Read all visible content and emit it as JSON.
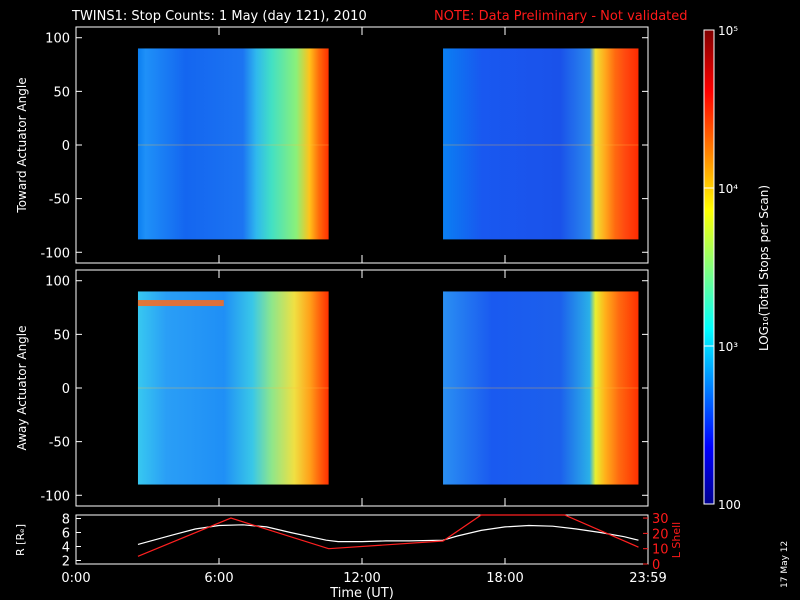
{
  "title": {
    "main": "TWINS1: Stop Counts:  1 May (day 121), 2010",
    "note": "NOTE: Data Preliminary - Not validated"
  },
  "colors": {
    "background": "#000000",
    "axis": "#ffffff",
    "orbit_r": "#ffffff",
    "orbit_l": "#ff2020",
    "note": "#ff1a1a"
  },
  "chart_data": [
    {
      "type": "heatmap",
      "ylabel": "Toward Actuator Angle",
      "ylim": [
        -110,
        110
      ],
      "yticks": [
        "-100",
        "-50",
        "0",
        "50",
        "100"
      ],
      "yrange_data": [
        -88,
        90
      ],
      "data_intervals_hours": [
        [
          2.6,
          10.6
        ],
        [
          15.4,
          23.6
        ]
      ],
      "profile": "toward"
    },
    {
      "type": "heatmap",
      "ylabel": "Away Actuator Angle",
      "ylim": [
        -110,
        110
      ],
      "yticks": [
        "-100",
        "-50",
        "0",
        "50",
        "100"
      ],
      "yrange_data": [
        -90,
        90
      ],
      "data_intervals_hours": [
        [
          2.6,
          10.6
        ],
        [
          15.4,
          23.6
        ]
      ],
      "profile": "away"
    },
    {
      "type": "line",
      "xlabel": "Time (UT)",
      "xticks": [
        "0:00",
        "6:00",
        "12:00",
        "18:00",
        "23:59"
      ],
      "xlim": [
        0,
        24
      ],
      "left_axis": {
        "label": "R [Rₑ]",
        "ticks": [
          "2",
          "4",
          "6",
          "8"
        ],
        "ylim": [
          1.5,
          8.5
        ]
      },
      "right_axis": {
        "label": "L Shell",
        "ticks": [
          "0",
          "10",
          "20",
          "30"
        ],
        "ylim": [
          0,
          32
        ]
      },
      "series": [
        {
          "name": "R [Rₑ]",
          "axis": "left",
          "x": [
            2.6,
            4,
            5,
            6,
            7,
            8,
            9,
            10.5,
            11,
            12,
            13,
            14,
            15.4,
            16,
            17,
            18,
            19,
            20,
            21,
            22,
            23,
            23.6
          ],
          "y": [
            4.3,
            5.6,
            6.5,
            7.0,
            7.1,
            6.8,
            6.0,
            4.9,
            4.7,
            4.7,
            4.8,
            4.8,
            4.9,
            5.5,
            6.3,
            6.8,
            7.0,
            6.9,
            6.5,
            6.0,
            5.4,
            4.9
          ]
        },
        {
          "name": "L Shell",
          "axis": "right",
          "x": [
            2.6,
            6.5,
            10.6,
            15.4,
            17.0,
            20.5,
            23.6
          ],
          "y": [
            5,
            30,
            10,
            15,
            32,
            32,
            11
          ]
        }
      ]
    }
  ],
  "colorbar": {
    "label": "LOG₁₀(Total Stops per Scan)",
    "ticks": [
      "10⁵",
      "10⁴",
      "10³",
      "100"
    ],
    "range": [
      100,
      100000
    ],
    "scale": "log"
  },
  "datestamp": "17 May 12"
}
